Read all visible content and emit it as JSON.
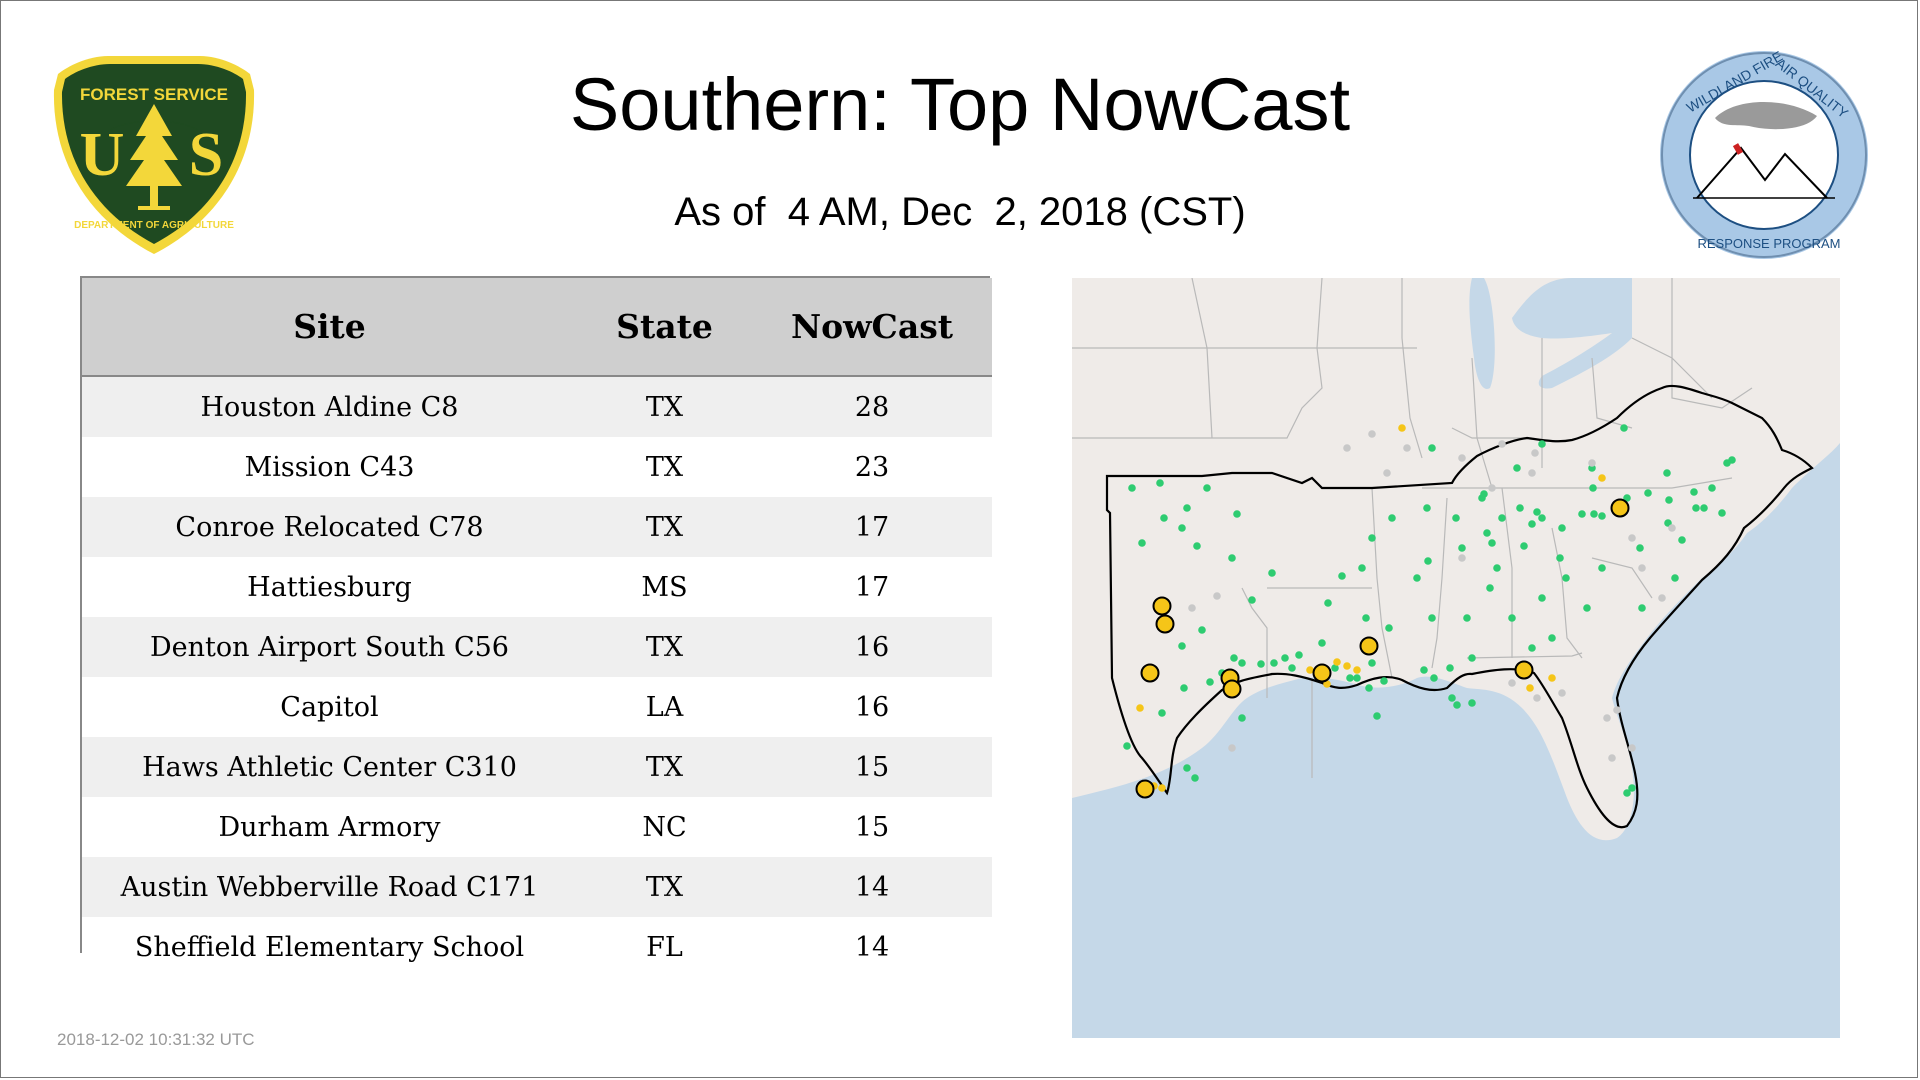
{
  "title": "Southern: Top NowCast",
  "subtitle": "As of  4 AM, Dec  2, 2018 (CST)",
  "logos": {
    "left": {
      "lines": [
        "FOREST SERVICE",
        "U",
        "S",
        "DEPARTMENT OF AGRICULTURE"
      ],
      "colors": {
        "shield": "#1f4a21",
        "gold": "#f3d73a"
      }
    },
    "right": {
      "lines": [
        "WILDLAND FIRE",
        "AIR QUALITY",
        "RESPONSE PROGRAM"
      ],
      "colors": {
        "ring": "#a9c8e6",
        "text": "#1d4f82"
      }
    }
  },
  "table": {
    "headers": [
      "Site",
      "State",
      "NowCast"
    ],
    "rows": [
      [
        "Houston Aldine C8",
        "TX",
        "28"
      ],
      [
        "Mission C43",
        "TX",
        "23"
      ],
      [
        "Conroe Relocated C78",
        "TX",
        "17"
      ],
      [
        "Hattiesburg",
        "MS",
        "17"
      ],
      [
        "Denton Airport South C56",
        "TX",
        "16"
      ],
      [
        "Capitol",
        "LA",
        "16"
      ],
      [
        "Haws Athletic Center C310",
        "TX",
        "15"
      ],
      [
        "Durham Armory",
        "NC",
        "15"
      ],
      [
        "Austin Webberville Road C171",
        "TX",
        "14"
      ],
      [
        "Sheffield Elementary School",
        "FL",
        "14"
      ]
    ]
  },
  "map": {
    "colors": {
      "land": "#efebe8",
      "water": "#c5d8e8",
      "border": "#b9b9b9",
      "region": "#000000",
      "good": "#2ecc71",
      "moderate": "#f5c518",
      "nodata": "#c8c8c8"
    }
  },
  "timestamp": "2018-12-02 10:31:32 UTC"
}
